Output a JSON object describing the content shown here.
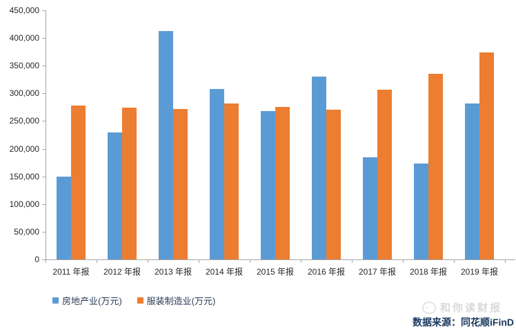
{
  "chart_data": {
    "type": "bar",
    "title": "",
    "xlabel": "",
    "ylabel": "",
    "categories": [
      "2011 年报",
      "2012 年报",
      "2013 年报",
      "2014 年报",
      "2015 年报",
      "2016 年报",
      "2017 年报",
      "2018 年报",
      "2019 年报"
    ],
    "series": [
      {
        "name": "房地产业(万元)",
        "color": "#5B9BD5",
        "values": [
          149000,
          229000,
          412000,
          308000,
          268000,
          330000,
          185000,
          173000,
          282000
        ]
      },
      {
        "name": "服装制造业(万元)",
        "color": "#ED7D31",
        "values": [
          278000,
          274000,
          272000,
          282000,
          275000,
          271000,
          307000,
          335000,
          374000
        ]
      }
    ],
    "ylim": [
      0,
      450000
    ],
    "ytick_step": 50000,
    "ytick_labels": [
      "0",
      "50,000",
      "100,000",
      "150,000",
      "200,000",
      "250,000",
      "300,000",
      "350,000",
      "400,000",
      "450,000"
    ],
    "grid": false,
    "legend_position": "bottom-left"
  },
  "footer": {
    "watermark": "和你读财报",
    "source": "数据来源：同花顺iFinD"
  },
  "colors": {
    "series_blue": "#5B9BD5",
    "series_orange": "#ED7D31",
    "axis_line": "#A6A6A6",
    "axis_text": "#262626",
    "legend_text": "#2B3A55",
    "source_text": "#17375E",
    "watermark_text": "#D9D9D9",
    "background": "#FFFFFF"
  }
}
